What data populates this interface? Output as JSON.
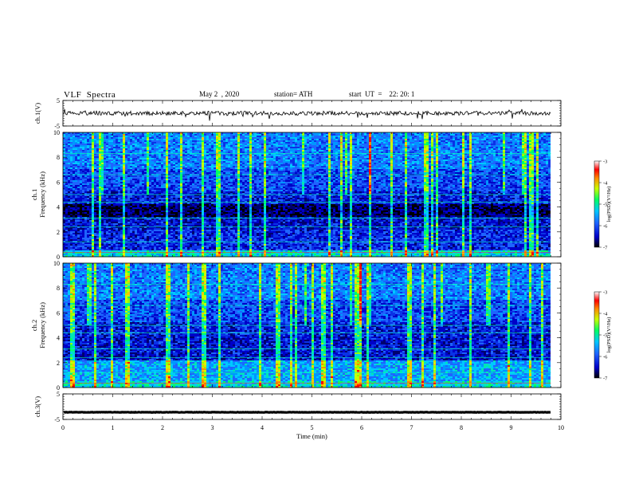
{
  "header": {
    "title": "VLF  Spectra",
    "date": "May 2  , 2020",
    "station": "station= ATH",
    "start": "start  UT  =    22: 20: 1"
  },
  "chart_data": [
    {
      "type": "line",
      "name": "ch1-waveform",
      "ylabel": "ch.1(V)",
      "ylim": [
        -5,
        5
      ],
      "yticks": [
        "5",
        "-5"
      ],
      "x_range": [
        0,
        9.8
      ],
      "baseline": 0
    },
    {
      "type": "heatmap",
      "name": "ch1-spectrogram",
      "ylabel_top": "ch.1",
      "ylabel": "Frequency  (kHz)",
      "ylim": [
        0,
        10
      ],
      "yticks": [
        "0",
        "2",
        "4",
        "6",
        "8",
        "10"
      ],
      "x_range": [
        0,
        9.8
      ],
      "colorbar": {
        "label": "log(PSD)(V²/Hz)",
        "range": [
          -7,
          -3
        ],
        "ticks": [
          "-3",
          "-4",
          "-5",
          "-6",
          "-7"
        ],
        "colors": [
          "#000000",
          "#0000c8",
          "#1e64ff",
          "#00c8ff",
          "#00ff64",
          "#c8ff00",
          "#ff8c00",
          "#ff0000",
          "#ffffff"
        ]
      }
    },
    {
      "type": "heatmap",
      "name": "ch2-spectrogram",
      "ylabel_top": "ch.2",
      "ylabel": "Frequency  (kHz)",
      "ylim": [
        0,
        10
      ],
      "yticks": [
        "0",
        "2",
        "4",
        "6",
        "8",
        "10"
      ],
      "x_range": [
        0,
        9.8
      ],
      "colorbar": {
        "label": "log(PSD)(V²/Hz)",
        "range": [
          -7,
          -3
        ],
        "ticks": [
          "-3",
          "-4",
          "-5",
          "-6",
          "-7"
        ],
        "colors": [
          "#000000",
          "#0000c8",
          "#1e64ff",
          "#00c8ff",
          "#00ff64",
          "#c8ff00",
          "#ff8c00",
          "#ff0000",
          "#ffffff"
        ]
      }
    },
    {
      "type": "line",
      "name": "ch3-waveform",
      "ylabel": "ch.3(V)",
      "ylim": [
        -5,
        5
      ],
      "yticks": [
        "5",
        "-5"
      ],
      "x_range": [
        0,
        9.8
      ],
      "baseline": -2.2
    }
  ],
  "x_axis": {
    "label": "Time  (min)",
    "ticks": [
      "0",
      "1",
      "2",
      "3",
      "4",
      "5",
      "6",
      "7",
      "8",
      "9",
      "10"
    ],
    "range": [
      0,
      10
    ]
  }
}
